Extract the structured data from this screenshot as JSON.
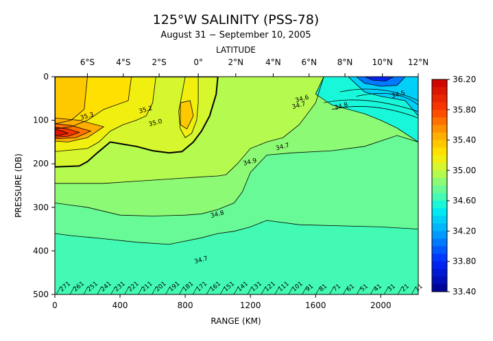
{
  "chart_data": {
    "type": "contour",
    "title": "125°W SALINITY (PSS-78)",
    "subtitle": "August 31 − September 10, 2005",
    "top_axis": {
      "label": "LATITUDE",
      "ticks": [
        "6°S",
        "4°S",
        "2°S",
        "0°",
        "2°N",
        "4°N",
        "6°N",
        "8°N",
        "10°N",
        "12°N"
      ],
      "positions_km": [
        200,
        420,
        640,
        880,
        1110,
        1340,
        1560,
        1780,
        2010,
        2230
      ]
    },
    "x_axis": {
      "label": "RANGE (KM)",
      "ticks": [
        0,
        400,
        800,
        1200,
        1600,
        2000
      ],
      "lim": [
        0,
        2230
      ]
    },
    "y_axis": {
      "label": "PRESSURE (DB)",
      "ticks": [
        0,
        100,
        200,
        300,
        400,
        500
      ],
      "lim": [
        0,
        500
      ],
      "inverted": true
    },
    "colorbar": {
      "ticks": [
        "36.20",
        "35.80",
        "35.40",
        "35.00",
        "34.60",
        "34.20",
        "33.80",
        "33.40"
      ],
      "min": 33.4,
      "max": 36.2,
      "step": 0.1
    },
    "contour_labels": [
      {
        "text": "35.3",
        "x_km": 200,
        "p": 95
      },
      {
        "text": "35.0",
        "x_km": 620,
        "p": 110
      },
      {
        "text": "35.2",
        "x_km": 560,
        "p": 80
      },
      {
        "text": "34.6",
        "x_km": 1520,
        "p": 55
      },
      {
        "text": "34.7",
        "x_km": 1500,
        "p": 70
      },
      {
        "text": "34.8",
        "x_km": 1760,
        "p": 72
      },
      {
        "text": "34.5",
        "x_km": 2110,
        "p": 45
      },
      {
        "text": "34.9",
        "x_km": 1200,
        "p": 200
      },
      {
        "text": "34.7",
        "x_km": 1400,
        "p": 165
      },
      {
        "text": "34.8",
        "x_km": 1000,
        "p": 320
      },
      {
        "text": "34.7",
        "x_km": 900,
        "p": 425
      }
    ],
    "stations": [
      "271",
      "261",
      "251",
      "241",
      "231",
      "221",
      "211",
      "201",
      "191",
      "181",
      "171",
      "161",
      "151",
      "141",
      "131",
      "121",
      "111",
      "101",
      "91",
      "81",
      "71",
      "61",
      "51",
      "41",
      "31",
      "21",
      "11"
    ]
  }
}
